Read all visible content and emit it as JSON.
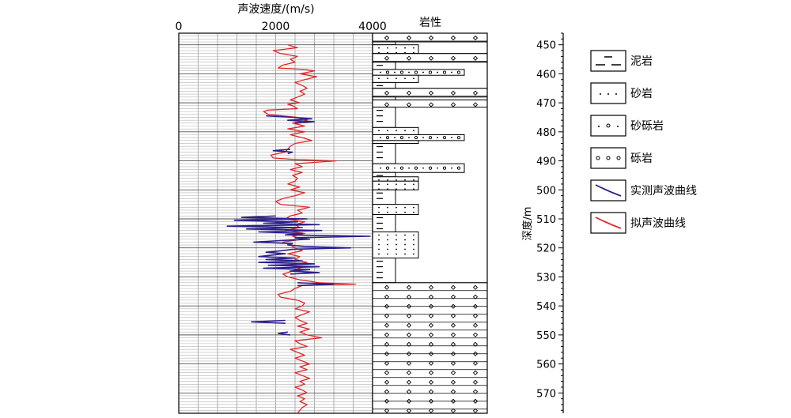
{
  "chart_data": {
    "type": "line",
    "title": "",
    "velocity_axis": {
      "label": "声波速度/(m/s)",
      "range": [
        0,
        4000
      ],
      "ticks": [
        0,
        2000,
        4000
      ],
      "gridline_step": 400
    },
    "lithology_column": {
      "label": "岩性"
    },
    "depth_axis": {
      "label": "深度/m",
      "range": [
        446,
        577
      ],
      "ticks": [
        450,
        460,
        470,
        480,
        490,
        500,
        510,
        520,
        530,
        540,
        550,
        560,
        570
      ],
      "inverted": true
    },
    "grid": true,
    "legend_position": "right",
    "legend": [
      {
        "symbol": "mudstone",
        "label": "泥岩"
      },
      {
        "symbol": "sandstone",
        "label": "砂岩"
      },
      {
        "symbol": "pebbly-sandstone",
        "label": "砂砾岩"
      },
      {
        "symbol": "conglomerate",
        "label": "砾岩"
      },
      {
        "symbol": "measured-curve",
        "label": "实测声波曲线"
      },
      {
        "symbol": "pseudo-curve",
        "label": "拟声波曲线"
      }
    ],
    "colors": {
      "measured": "#2b1f8c",
      "pseudo": "#e0262a"
    },
    "series": [
      {
        "name": "实测声波曲线",
        "key": "measured",
        "points": [
          [
            474.5,
            1800
          ],
          [
            475,
            2350
          ],
          [
            475.5,
            2750
          ],
          [
            476,
            2250
          ],
          [
            476.5,
            2800
          ],
          [
            477,
            2400
          ],
          [
            486,
            2300
          ],
          [
            486.5,
            1950
          ],
          [
            487,
            2350
          ],
          [
            487.5,
            2250
          ],
          [
            509,
            2000
          ],
          [
            509.5,
            1300
          ],
          [
            510,
            2650
          ],
          [
            510.5,
            1150
          ],
          [
            511,
            2450
          ],
          [
            511.5,
            1750
          ],
          [
            512,
            2900
          ],
          [
            512.5,
            1000
          ],
          [
            513,
            2550
          ],
          [
            513.5,
            1400
          ],
          [
            514,
            2950
          ],
          [
            514.5,
            1650
          ],
          [
            515,
            2550
          ],
          [
            515.5,
            2200
          ],
          [
            516,
            3950
          ],
          [
            516.5,
            2400
          ],
          [
            517,
            2700
          ],
          [
            517.5,
            2100
          ],
          [
            518,
            1550
          ],
          [
            518.5,
            2350
          ],
          [
            519,
            2250
          ],
          [
            519.5,
            2600
          ],
          [
            520,
            3550
          ],
          [
            520.5,
            2350
          ],
          [
            521,
            2100
          ],
          [
            521.5,
            1800
          ],
          [
            522,
            2200
          ],
          [
            523,
            1650
          ],
          [
            523.5,
            2400
          ],
          [
            524,
            1800
          ],
          [
            524.5,
            2550
          ],
          [
            525,
            1650
          ],
          [
            525.5,
            2800
          ],
          [
            526,
            1850
          ],
          [
            526.5,
            2900
          ],
          [
            527,
            1750
          ],
          [
            527.5,
            2700
          ],
          [
            528,
            2300
          ],
          [
            528.5,
            2900
          ],
          [
            529,
            2300
          ],
          [
            532,
            2450
          ],
          [
            532.5,
            3200
          ],
          [
            533,
            2450
          ],
          [
            545,
            2200
          ],
          [
            545.5,
            1500
          ],
          [
            546,
            2200
          ],
          [
            549,
            2250
          ],
          [
            549.5,
            2050
          ],
          [
            550,
            2300
          ]
        ]
      },
      {
        "name": "拟声波曲线",
        "key": "pseudo",
        "points": [
          [
            446,
            2450
          ],
          [
            448,
            2400
          ],
          [
            450,
            2250
          ],
          [
            451,
            2450
          ],
          [
            452,
            1950
          ],
          [
            453,
            2100
          ],
          [
            454,
            2450
          ],
          [
            455,
            2300
          ],
          [
            456,
            2400
          ],
          [
            457,
            2150
          ],
          [
            458,
            2050
          ],
          [
            458.5,
            2600
          ],
          [
            459,
            2800
          ],
          [
            460,
            2500
          ],
          [
            461,
            2850
          ],
          [
            462,
            2600
          ],
          [
            463,
            2400
          ],
          [
            464,
            2550
          ],
          [
            465,
            2650
          ],
          [
            466,
            2500
          ],
          [
            467,
            2600
          ],
          [
            468,
            2450
          ],
          [
            469,
            2300
          ],
          [
            470,
            2500
          ],
          [
            470.5,
            2250
          ],
          [
            471,
            2350
          ],
          [
            472,
            2450
          ],
          [
            472.5,
            1850
          ],
          [
            473,
            1750
          ],
          [
            474,
            1850
          ],
          [
            475,
            2450
          ],
          [
            476,
            2650
          ],
          [
            477,
            2350
          ],
          [
            478,
            2600
          ],
          [
            479,
            2250
          ],
          [
            480,
            2600
          ],
          [
            481,
            2300
          ],
          [
            482,
            2550
          ],
          [
            483,
            2750
          ],
          [
            484,
            2400
          ],
          [
            485,
            2300
          ],
          [
            486,
            2250
          ],
          [
            487,
            2200
          ],
          [
            488,
            1900
          ],
          [
            489,
            1950
          ],
          [
            489.5,
            2350
          ],
          [
            490,
            3250
          ],
          [
            491,
            2400
          ],
          [
            492,
            2550
          ],
          [
            493,
            2300
          ],
          [
            494,
            2550
          ],
          [
            495,
            2350
          ],
          [
            496,
            2450
          ],
          [
            497,
            2400
          ],
          [
            498,
            2250
          ],
          [
            499,
            2500
          ],
          [
            500,
            2300
          ],
          [
            501,
            2600
          ],
          [
            502,
            2400
          ],
          [
            503,
            2150
          ],
          [
            504,
            2000
          ],
          [
            505,
            2100
          ],
          [
            505.5,
            2400
          ],
          [
            506,
            2700
          ],
          [
            507,
            2450
          ],
          [
            508,
            2550
          ],
          [
            509,
            2300
          ],
          [
            510,
            2200
          ],
          [
            511,
            2600
          ],
          [
            512,
            2400
          ],
          [
            513,
            2500
          ],
          [
            514,
            2200
          ],
          [
            515,
            2600
          ],
          [
            516,
            2350
          ],
          [
            517,
            2550
          ],
          [
            518,
            2150
          ],
          [
            519,
            2300
          ],
          [
            520,
            2400
          ],
          [
            521,
            2550
          ],
          [
            522,
            2250
          ],
          [
            523,
            2500
          ],
          [
            524,
            2400
          ],
          [
            525,
            2650
          ],
          [
            526,
            2300
          ],
          [
            527,
            2500
          ],
          [
            528,
            2350
          ],
          [
            529,
            2150
          ],
          [
            530,
            2250
          ],
          [
            531,
            2500
          ],
          [
            532,
            2900
          ],
          [
            532.5,
            3650
          ],
          [
            533,
            2550
          ],
          [
            534,
            2400
          ],
          [
            535,
            2300
          ],
          [
            536,
            2050
          ],
          [
            537,
            2100
          ],
          [
            538,
            2450
          ],
          [
            539,
            2600
          ],
          [
            540,
            2550
          ],
          [
            541,
            2400
          ],
          [
            542,
            2700
          ],
          [
            543,
            2550
          ],
          [
            544,
            2400
          ],
          [
            545,
            2500
          ],
          [
            546,
            2650
          ],
          [
            547,
            2450
          ],
          [
            548,
            2700
          ],
          [
            549,
            2500
          ],
          [
            550,
            2650
          ],
          [
            551,
            2950
          ],
          [
            552,
            2400
          ],
          [
            553,
            2500
          ],
          [
            554,
            2650
          ],
          [
            555,
            2300
          ],
          [
            556,
            2450
          ],
          [
            557,
            2600
          ],
          [
            558,
            2400
          ],
          [
            559,
            2550
          ],
          [
            560,
            2700
          ],
          [
            561,
            2500
          ],
          [
            562,
            2650
          ],
          [
            563,
            2400
          ],
          [
            564,
            2550
          ],
          [
            565,
            2700
          ],
          [
            566,
            2500
          ],
          [
            567,
            2600
          ],
          [
            568,
            2400
          ],
          [
            569,
            2550
          ],
          [
            570,
            2650
          ],
          [
            571,
            2450
          ],
          [
            572,
            2600
          ],
          [
            573,
            2500
          ],
          [
            574,
            2650
          ],
          [
            575,
            2550
          ],
          [
            576,
            2500
          ],
          [
            577,
            2450
          ]
        ]
      }
    ],
    "lithology_intervals": [
      {
        "top": 446,
        "bottom": 449,
        "rock": "conglomerate"
      },
      {
        "top": 449,
        "bottom": 450,
        "rock": "mudstone"
      },
      {
        "top": 450,
        "bottom": 453,
        "rock": "sandstone"
      },
      {
        "top": 453,
        "bottom": 456,
        "rock": "conglomerate"
      },
      {
        "top": 456,
        "bottom": 458.5,
        "rock": "mudstone"
      },
      {
        "top": 458.5,
        "bottom": 460.5,
        "rock": "pebbly-sandstone"
      },
      {
        "top": 460.5,
        "bottom": 463,
        "rock": "sandstone"
      },
      {
        "top": 463,
        "bottom": 465,
        "rock": "mudstone"
      },
      {
        "top": 465,
        "bottom": 468,
        "rock": "conglomerate"
      },
      {
        "top": 468,
        "bottom": 469,
        "rock": "mudstone"
      },
      {
        "top": 469,
        "bottom": 471.5,
        "rock": "conglomerate"
      },
      {
        "top": 471.5,
        "bottom": 478.5,
        "rock": "mudstone"
      },
      {
        "top": 478.5,
        "bottom": 481,
        "rock": "sandstone"
      },
      {
        "top": 481,
        "bottom": 483,
        "rock": "pebbly-sandstone"
      },
      {
        "top": 483,
        "bottom": 484,
        "rock": "sandstone"
      },
      {
        "top": 484,
        "bottom": 491,
        "rock": "mudstone"
      },
      {
        "top": 491,
        "bottom": 494,
        "rock": "pebbly-sandstone"
      },
      {
        "top": 494,
        "bottom": 495.5,
        "rock": "mudstone"
      },
      {
        "top": 495.5,
        "bottom": 497,
        "rock": "sandstone"
      },
      {
        "top": 497,
        "bottom": 500,
        "rock": "sandstone"
      },
      {
        "top": 500,
        "bottom": 505,
        "rock": "mudstone"
      },
      {
        "top": 505,
        "bottom": 508.5,
        "rock": "sandstone"
      },
      {
        "top": 508.5,
        "bottom": 514.5,
        "rock": "mudstone"
      },
      {
        "top": 514.5,
        "bottom": 523.5,
        "rock": "sandstone"
      },
      {
        "top": 523.5,
        "bottom": 532,
        "rock": "mudstone"
      },
      {
        "top": 532,
        "bottom": 577,
        "rock": "conglomerate"
      }
    ]
  }
}
